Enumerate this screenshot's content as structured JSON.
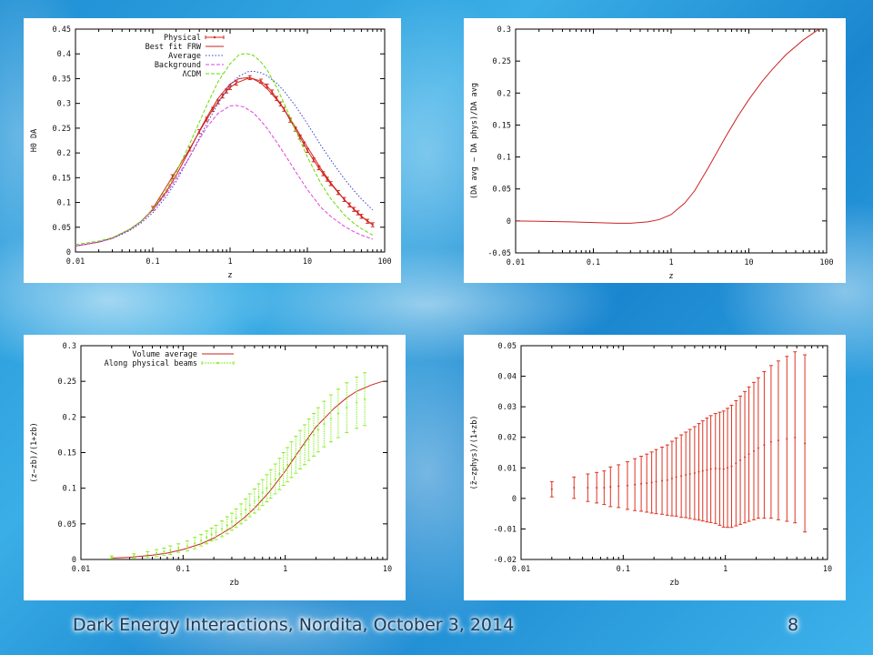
{
  "footer": {
    "title": "Dark Energy Interactions, Nordita, October 3, 2014",
    "page": "8"
  },
  "colors": {
    "physical": "#d42a1e",
    "best_fit": "#cc2222",
    "average": "#3344cc",
    "background": "#dd44dd",
    "lcdm": "#66dd00",
    "volume_average": "#cc2222",
    "physical_beams": "#88ee22",
    "errorbar": "#dd3322"
  },
  "chart_data": [
    {
      "type": "line",
      "xscale": "log",
      "xlim": [
        0.01,
        100
      ],
      "ylim": [
        0,
        0.45
      ],
      "xticks": [
        0.01,
        0.1,
        1,
        10,
        100
      ],
      "xtick_labels": [
        "0.01",
        "0.1",
        "1",
        "10",
        "100"
      ],
      "yticks": [
        0,
        0.05,
        0.1,
        0.15,
        0.2,
        0.25,
        0.3,
        0.35,
        0.4,
        0.45
      ],
      "ytick_labels": [
        "0",
        "0.05",
        "0.1",
        "0.15",
        "0.2",
        "0.25",
        "0.3",
        "0.35",
        "0.4",
        "0.45"
      ],
      "xlabel": "z",
      "ylabel": "H0 DA",
      "grid": false,
      "legend_position": "top-right",
      "series": [
        {
          "name": "Physical",
          "style": "errorbars",
          "color": "#d42a1e",
          "x": [
            0.1,
            0.18,
            0.3,
            0.4,
            0.5,
            0.6,
            0.7,
            0.8,
            0.9,
            1.0,
            1.2,
            1.8,
            2.5,
            3.0,
            3.5,
            4.0,
            4.5,
            5.0,
            6.0,
            7.0,
            8.0,
            9.0,
            10,
            12,
            14,
            16,
            18,
            20,
            25,
            30,
            35,
            40,
            45,
            50,
            60,
            70
          ],
          "y": [
            0.088,
            0.152,
            0.208,
            0.243,
            0.268,
            0.288,
            0.303,
            0.315,
            0.325,
            0.332,
            0.341,
            0.352,
            0.345,
            0.335,
            0.323,
            0.31,
            0.299,
            0.288,
            0.266,
            0.248,
            0.232,
            0.218,
            0.205,
            0.186,
            0.17,
            0.158,
            0.147,
            0.138,
            0.12,
            0.106,
            0.095,
            0.086,
            0.079,
            0.072,
            0.062,
            0.055
          ]
        },
        {
          "name": "Best fit FRW",
          "style": "line",
          "color": "#cc2222",
          "x": [
            0.01,
            0.02,
            0.03,
            0.05,
            0.07,
            0.1,
            0.15,
            0.2,
            0.3,
            0.4,
            0.5,
            0.7,
            1.0,
            1.3,
            1.7,
            2.0,
            2.5,
            3.0,
            4.0,
            5.0,
            7.0,
            10,
            15,
            20,
            30,
            40,
            50,
            70
          ],
          "y": [
            0.012,
            0.02,
            0.028,
            0.045,
            0.061,
            0.085,
            0.122,
            0.154,
            0.206,
            0.244,
            0.272,
            0.31,
            0.339,
            0.35,
            0.352,
            0.349,
            0.341,
            0.33,
            0.308,
            0.288,
            0.252,
            0.212,
            0.168,
            0.14,
            0.106,
            0.086,
            0.072,
            0.055
          ]
        },
        {
          "name": "Average",
          "style": "dotted",
          "color": "#3344cc",
          "x": [
            0.01,
            0.02,
            0.03,
            0.05,
            0.07,
            0.1,
            0.15,
            0.2,
            0.3,
            0.4,
            0.5,
            0.7,
            1.0,
            1.3,
            1.7,
            2.0,
            2.5,
            3.0,
            4.0,
            5.0,
            7.0,
            10,
            15,
            20,
            30,
            40,
            50,
            70
          ],
          "y": [
            0.012,
            0.02,
            0.027,
            0.043,
            0.058,
            0.079,
            0.112,
            0.142,
            0.192,
            0.23,
            0.259,
            0.3,
            0.337,
            0.355,
            0.364,
            0.365,
            0.362,
            0.356,
            0.341,
            0.325,
            0.295,
            0.259,
            0.215,
            0.186,
            0.148,
            0.124,
            0.107,
            0.085
          ]
        },
        {
          "name": "Background",
          "style": "dashed",
          "color": "#dd44dd",
          "x": [
            0.01,
            0.02,
            0.03,
            0.05,
            0.07,
            0.1,
            0.15,
            0.2,
            0.3,
            0.4,
            0.5,
            0.7,
            1.0,
            1.2,
            1.5,
            2.0,
            2.5,
            3.0,
            4.0,
            5.0,
            7.0,
            10,
            15,
            20,
            30,
            40,
            50,
            70
          ],
          "y": [
            0.012,
            0.02,
            0.028,
            0.045,
            0.061,
            0.084,
            0.118,
            0.148,
            0.192,
            0.227,
            0.252,
            0.28,
            0.295,
            0.296,
            0.293,
            0.281,
            0.265,
            0.25,
            0.222,
            0.199,
            0.163,
            0.126,
            0.09,
            0.072,
            0.052,
            0.041,
            0.034,
            0.026
          ]
        },
        {
          "name": "ΛCDM",
          "style": "dashed",
          "color": "#66dd00",
          "x": [
            0.01,
            0.02,
            0.03,
            0.05,
            0.07,
            0.1,
            0.15,
            0.2,
            0.3,
            0.4,
            0.5,
            0.7,
            1.0,
            1.3,
            1.6,
            2.0,
            2.5,
            3.0,
            4.0,
            5.0,
            7.0,
            10,
            15,
            20,
            30,
            40,
            50,
            70
          ],
          "y": [
            0.015,
            0.022,
            0.029,
            0.046,
            0.062,
            0.087,
            0.126,
            0.16,
            0.218,
            0.262,
            0.296,
            0.344,
            0.38,
            0.398,
            0.401,
            0.397,
            0.384,
            0.368,
            0.333,
            0.3,
            0.247,
            0.192,
            0.138,
            0.108,
            0.075,
            0.058,
            0.047,
            0.034
          ]
        }
      ]
    },
    {
      "type": "line",
      "xscale": "log",
      "xlim": [
        0.01,
        100
      ],
      "ylim": [
        -0.05,
        0.3
      ],
      "xticks": [
        0.01,
        0.1,
        1,
        10,
        100
      ],
      "xtick_labels": [
        "0.01",
        "0.1",
        "1",
        "10",
        "100"
      ],
      "yticks": [
        -0.05,
        0,
        0.05,
        0.1,
        0.15,
        0.2,
        0.25,
        0.3
      ],
      "ytick_labels": [
        "-0.05",
        "0",
        "0.05",
        "0.1",
        "0.15",
        "0.2",
        "0.25",
        "0.3"
      ],
      "xlabel": "z",
      "ylabel": "(DA avg − DA phys)/DA avg",
      "grid": false,
      "series": [
        {
          "style": "line",
          "color": "#cc2222",
          "x": [
            0.01,
            0.02,
            0.05,
            0.1,
            0.2,
            0.3,
            0.5,
            0.7,
            1.0,
            1.5,
            2.0,
            3.0,
            5.0,
            7.0,
            10,
            15,
            20,
            30,
            50,
            80
          ],
          "y": [
            0.0,
            -0.0005,
            -0.0015,
            -0.0025,
            -0.0035,
            -0.0035,
            -0.0015,
            0.002,
            0.01,
            0.028,
            0.047,
            0.083,
            0.131,
            0.161,
            0.19,
            0.219,
            0.237,
            0.26,
            0.283,
            0.3
          ]
        }
      ]
    },
    {
      "type": "line",
      "xscale": "log",
      "xlim": [
        0.01,
        10
      ],
      "ylim": [
        0,
        0.3
      ],
      "xticks": [
        0.01,
        0.1,
        1,
        10
      ],
      "xtick_labels": [
        "0.01",
        "0.1",
        "1",
        "10"
      ],
      "yticks": [
        0,
        0.05,
        0.1,
        0.15,
        0.2,
        0.25,
        0.3
      ],
      "ytick_labels": [
        "0",
        "0.05",
        "0.1",
        "0.15",
        "0.2",
        "0.25",
        "0.3"
      ],
      "xlabel": "zb",
      "ylabel": "(z−zb)/(1+zb)",
      "grid": false,
      "legend_position": "top-left",
      "series": [
        {
          "name": "Volume average",
          "style": "line",
          "color": "#cc2222",
          "x": [
            0.02,
            0.03,
            0.05,
            0.07,
            0.1,
            0.15,
            0.2,
            0.3,
            0.4,
            0.5,
            0.7,
            1.0,
            1.5,
            2.0,
            3.0,
            4.0,
            5.0,
            7.0,
            9.0
          ],
          "y": [
            0.002,
            0.003,
            0.006,
            0.009,
            0.014,
            0.022,
            0.03,
            0.045,
            0.059,
            0.072,
            0.095,
            0.124,
            0.161,
            0.186,
            0.212,
            0.227,
            0.236,
            0.245,
            0.25
          ]
        },
        {
          "name": "Along physical beams",
          "style": "errorbars",
          "color": "#88ee22",
          "x": [
            0.02,
            0.033,
            0.045,
            0.055,
            0.065,
            0.075,
            0.09,
            0.11,
            0.13,
            0.15,
            0.17,
            0.19,
            0.21,
            0.24,
            0.27,
            0.3,
            0.33,
            0.37,
            0.41,
            0.45,
            0.5,
            0.55,
            0.6,
            0.66,
            0.72,
            0.8,
            0.88,
            0.96,
            1.05,
            1.15,
            1.27,
            1.4,
            1.55,
            1.7,
            1.9,
            2.1,
            2.4,
            2.8,
            3.3,
            4.0,
            5.0,
            6.0
          ],
          "y": [
            0.003,
            0.005,
            0.007,
            0.009,
            0.011,
            0.013,
            0.016,
            0.019,
            0.023,
            0.027,
            0.031,
            0.035,
            0.038,
            0.043,
            0.048,
            0.053,
            0.058,
            0.064,
            0.07,
            0.076,
            0.082,
            0.088,
            0.094,
            0.1,
            0.106,
            0.113,
            0.12,
            0.127,
            0.133,
            0.14,
            0.147,
            0.154,
            0.161,
            0.168,
            0.175,
            0.182,
            0.19,
            0.198,
            0.205,
            0.213,
            0.22,
            0.225
          ],
          "err": [
            0.002,
            0.003,
            0.004,
            0.005,
            0.005,
            0.006,
            0.006,
            0.007,
            0.008,
            0.008,
            0.009,
            0.009,
            0.01,
            0.011,
            0.012,
            0.012,
            0.013,
            0.014,
            0.015,
            0.016,
            0.017,
            0.018,
            0.018,
            0.019,
            0.02,
            0.021,
            0.022,
            0.023,
            0.024,
            0.025,
            0.026,
            0.027,
            0.028,
            0.029,
            0.03,
            0.031,
            0.032,
            0.033,
            0.034,
            0.035,
            0.036,
            0.037
          ]
        }
      ]
    },
    {
      "type": "scatter",
      "xscale": "log",
      "xlim": [
        0.01,
        10
      ],
      "ylim": [
        -0.02,
        0.05
      ],
      "xticks": [
        0.01,
        0.1,
        1,
        10
      ],
      "xtick_labels": [
        "0.01",
        "0.1",
        "1",
        "10"
      ],
      "yticks": [
        -0.02,
        -0.01,
        0,
        0.01,
        0.02,
        0.03,
        0.04,
        0.05
      ],
      "ytick_labels": [
        "-0.02",
        "-0.01",
        "0",
        "0.01",
        "0.02",
        "0.03",
        "0.04",
        "0.05"
      ],
      "xlabel": "zb",
      "ylabel": "(z̄−zphys)/(1+zb)",
      "grid": false,
      "series": [
        {
          "style": "errorbars",
          "color": "#dd3322",
          "x": [
            0.02,
            0.033,
            0.045,
            0.055,
            0.065,
            0.075,
            0.09,
            0.11,
            0.13,
            0.15,
            0.17,
            0.19,
            0.21,
            0.24,
            0.27,
            0.3,
            0.33,
            0.37,
            0.41,
            0.45,
            0.5,
            0.55,
            0.6,
            0.66,
            0.72,
            0.8,
            0.88,
            0.96,
            1.05,
            1.15,
            1.27,
            1.4,
            1.55,
            1.7,
            1.9,
            2.1,
            2.4,
            2.8,
            3.3,
            4.0,
            4.8,
            6.0
          ],
          "y": [
            0.003,
            0.0035,
            0.0035,
            0.0035,
            0.0035,
            0.0038,
            0.004,
            0.0042,
            0.0045,
            0.0048,
            0.005,
            0.0052,
            0.0055,
            0.0058,
            0.006,
            0.0065,
            0.007,
            0.0073,
            0.0077,
            0.008,
            0.0083,
            0.0087,
            0.009,
            0.0093,
            0.0096,
            0.0098,
            0.0097,
            0.0096,
            0.01,
            0.0105,
            0.0115,
            0.0125,
            0.0135,
            0.0145,
            0.0155,
            0.0165,
            0.0175,
            0.0185,
            0.019,
            0.0195,
            0.02,
            0.018
          ],
          "err": [
            0.0025,
            0.0035,
            0.0045,
            0.005,
            0.0055,
            0.0065,
            0.007,
            0.0078,
            0.0085,
            0.009,
            0.0095,
            0.01,
            0.0105,
            0.011,
            0.0115,
            0.0122,
            0.0128,
            0.0135,
            0.014,
            0.0146,
            0.0152,
            0.0158,
            0.0164,
            0.017,
            0.0175,
            0.018,
            0.0185,
            0.019,
            0.0195,
            0.02,
            0.0205,
            0.021,
            0.0215,
            0.022,
            0.0225,
            0.023,
            0.024,
            0.025,
            0.026,
            0.027,
            0.028,
            0.029
          ]
        }
      ]
    }
  ],
  "panels": [
    {
      "legend": [
        {
          "label": "Physical",
          "style": "errorbars"
        },
        {
          "label": "Best fit FRW",
          "style": "line"
        },
        {
          "label": "Average",
          "style": "dotted"
        },
        {
          "label": "Background",
          "style": "dashed"
        },
        {
          "label": "ΛCDM",
          "style": "dashed"
        }
      ]
    },
    {
      "legend": []
    },
    {
      "legend": [
        {
          "label": "Volume average",
          "style": "line"
        },
        {
          "label": "Along physical beams",
          "style": "errorbars"
        }
      ]
    },
    {
      "legend": []
    }
  ]
}
